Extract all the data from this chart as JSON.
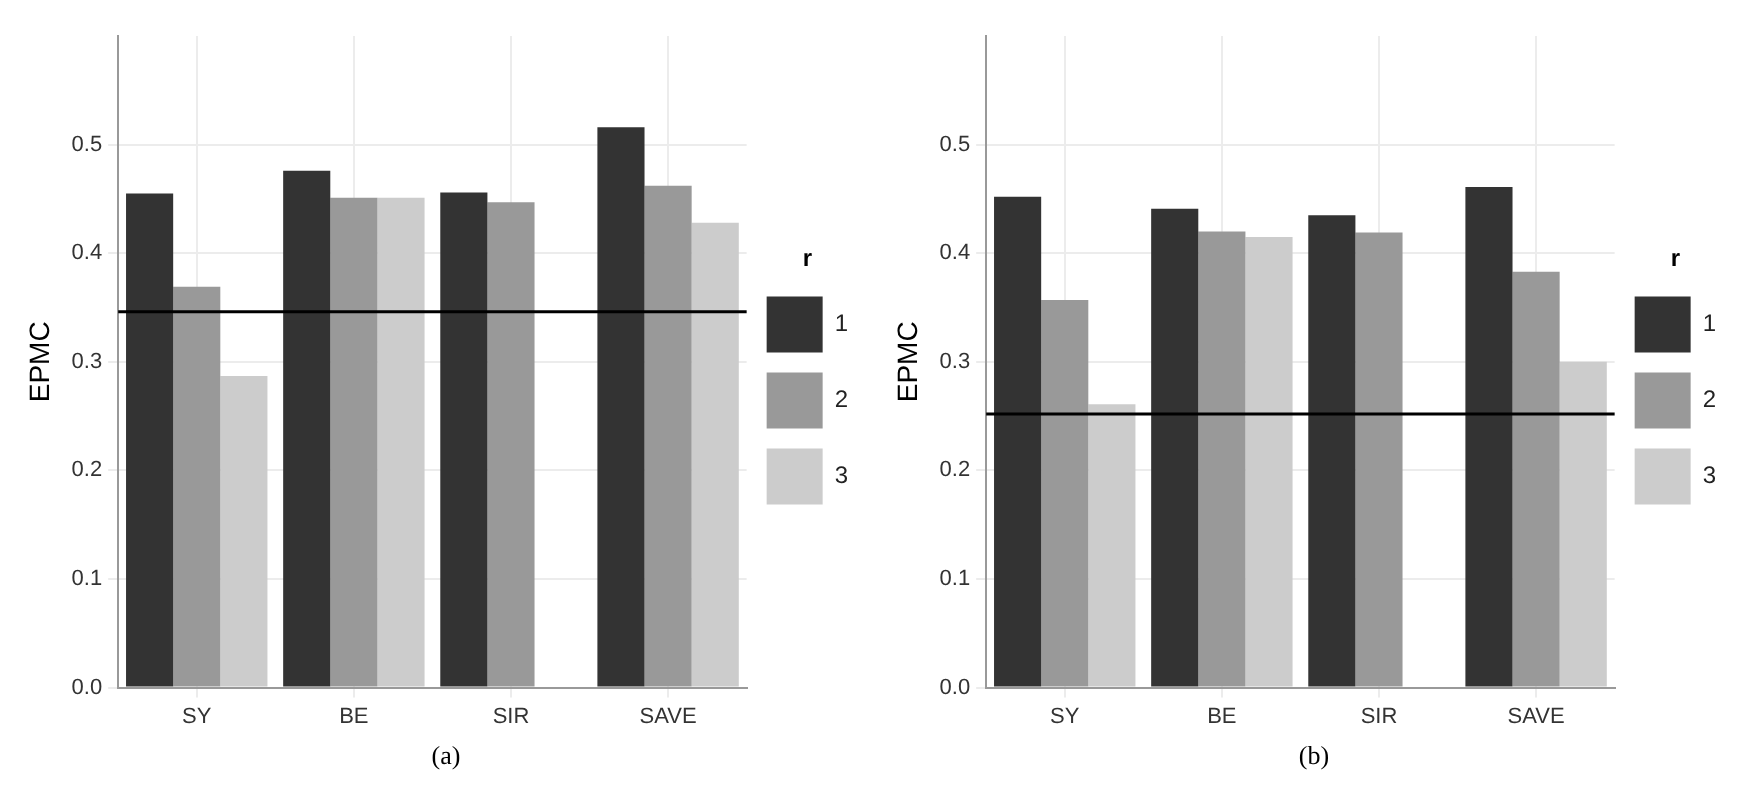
{
  "chart_data": [
    {
      "type": "bar",
      "ylabel": "EPMC",
      "legend_title": "r",
      "categories": [
        "SY",
        "BE",
        "SIR",
        "SAVE"
      ],
      "ylim": [
        0,
        0.6
      ],
      "yticks": [
        {
          "value": 0,
          "label": "0.0"
        },
        0.1,
        0.2,
        0.3,
        0.4,
        0.5
      ],
      "grid": true,
      "legend": "right",
      "annotations": [
        "(a)"
      ],
      "ref_lines": [
        {
          "axis": "y",
          "value": 0.346,
          "color": "#000000"
        }
      ],
      "series": [
        {
          "name": "1",
          "color": "#333333",
          "values": [
            0.455,
            0.476,
            0.456,
            0.516
          ]
        },
        {
          "name": "2",
          "color": "#999999",
          "values": [
            0.369,
            0.451,
            0.447,
            0.462
          ]
        },
        {
          "name": "3",
          "color": "#cccccc",
          "values": [
            0.287,
            0.451,
            null,
            0.428
          ]
        }
      ]
    },
    {
      "type": "bar",
      "ylabel": "EPMC",
      "legend_title": "r",
      "categories": [
        "SY",
        "BE",
        "SIR",
        "SAVE"
      ],
      "ylim": [
        0,
        0.6
      ],
      "yticks": [
        {
          "value": 0,
          "label": "0.0"
        },
        0.1,
        0.2,
        0.3,
        0.4,
        0.5
      ],
      "grid": true,
      "legend": "right",
      "annotations": [
        "(b)"
      ],
      "ref_lines": [
        {
          "axis": "y",
          "value": 0.252,
          "color": "#000000"
        }
      ],
      "series": [
        {
          "name": "1",
          "color": "#333333",
          "values": [
            0.452,
            0.441,
            0.435,
            0.461
          ]
        },
        {
          "name": "2",
          "color": "#999999",
          "values": [
            0.357,
            0.42,
            0.419,
            0.383
          ]
        },
        {
          "name": "3",
          "color": "#cccccc",
          "values": [
            0.261,
            0.415,
            null,
            0.3
          ]
        }
      ]
    }
  ]
}
